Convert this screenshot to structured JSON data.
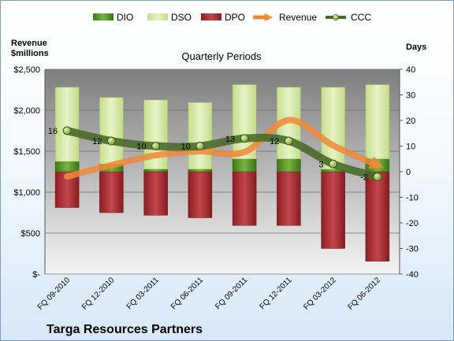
{
  "company": "Targa Resources Partners",
  "chart_data": {
    "type": "bar",
    "title": "Quarterly Periods",
    "ylabel_left": "Revenue\n$millions",
    "ylabel_right": "Days",
    "categories": [
      "FQ 09-2010",
      "FQ 12-2010",
      "FQ 03-2011",
      "FQ 06-2011",
      "FQ 09-2011",
      "FQ 12-2011",
      "FQ 03-2012",
      "FQ 06-2012"
    ],
    "left_axis": {
      "min": 0,
      "max": 2500,
      "step": 500,
      "tick_labels": [
        "$-",
        "$500",
        "$1,000",
        "$1,500",
        "$2,000",
        "$2,500"
      ]
    },
    "right_axis": {
      "min": -40,
      "max": 40,
      "step": 10,
      "tick_labels": [
        "-40",
        "-30",
        "-20",
        "-10",
        "0",
        "10",
        "20",
        "30",
        "40"
      ]
    },
    "series": [
      {
        "name": "DIO",
        "kind": "bar",
        "axis": "right",
        "color": "#4e8a1e",
        "values": [
          4,
          3,
          1,
          1,
          5,
          5,
          1,
          5
        ]
      },
      {
        "name": "DSO",
        "kind": "bar",
        "axis": "right",
        "color": "#d4e9a6",
        "values": [
          29,
          26,
          27,
          26,
          29,
          28,
          32,
          29
        ]
      },
      {
        "name": "DPO",
        "kind": "bar",
        "axis": "right",
        "color": "#a8262c",
        "values": [
          14,
          16,
          17,
          18,
          21,
          21,
          30,
          35
        ]
      },
      {
        "name": "Revenue",
        "kind": "line",
        "axis": "left",
        "color": "#f0883a",
        "values": [
          1190,
          1330,
          1450,
          1500,
          1490,
          1880,
          1570,
          1330
        ]
      },
      {
        "name": "CCC",
        "kind": "line",
        "axis": "right",
        "color": "#4a6b2a",
        "values": [
          16,
          12,
          10,
          10,
          13,
          12,
          3,
          -2
        ]
      }
    ],
    "ccc_labels": [
      "16",
      "12",
      "10",
      "10",
      "13",
      "12",
      "3",
      "-2"
    ],
    "legend_position": "top",
    "grid": true
  }
}
